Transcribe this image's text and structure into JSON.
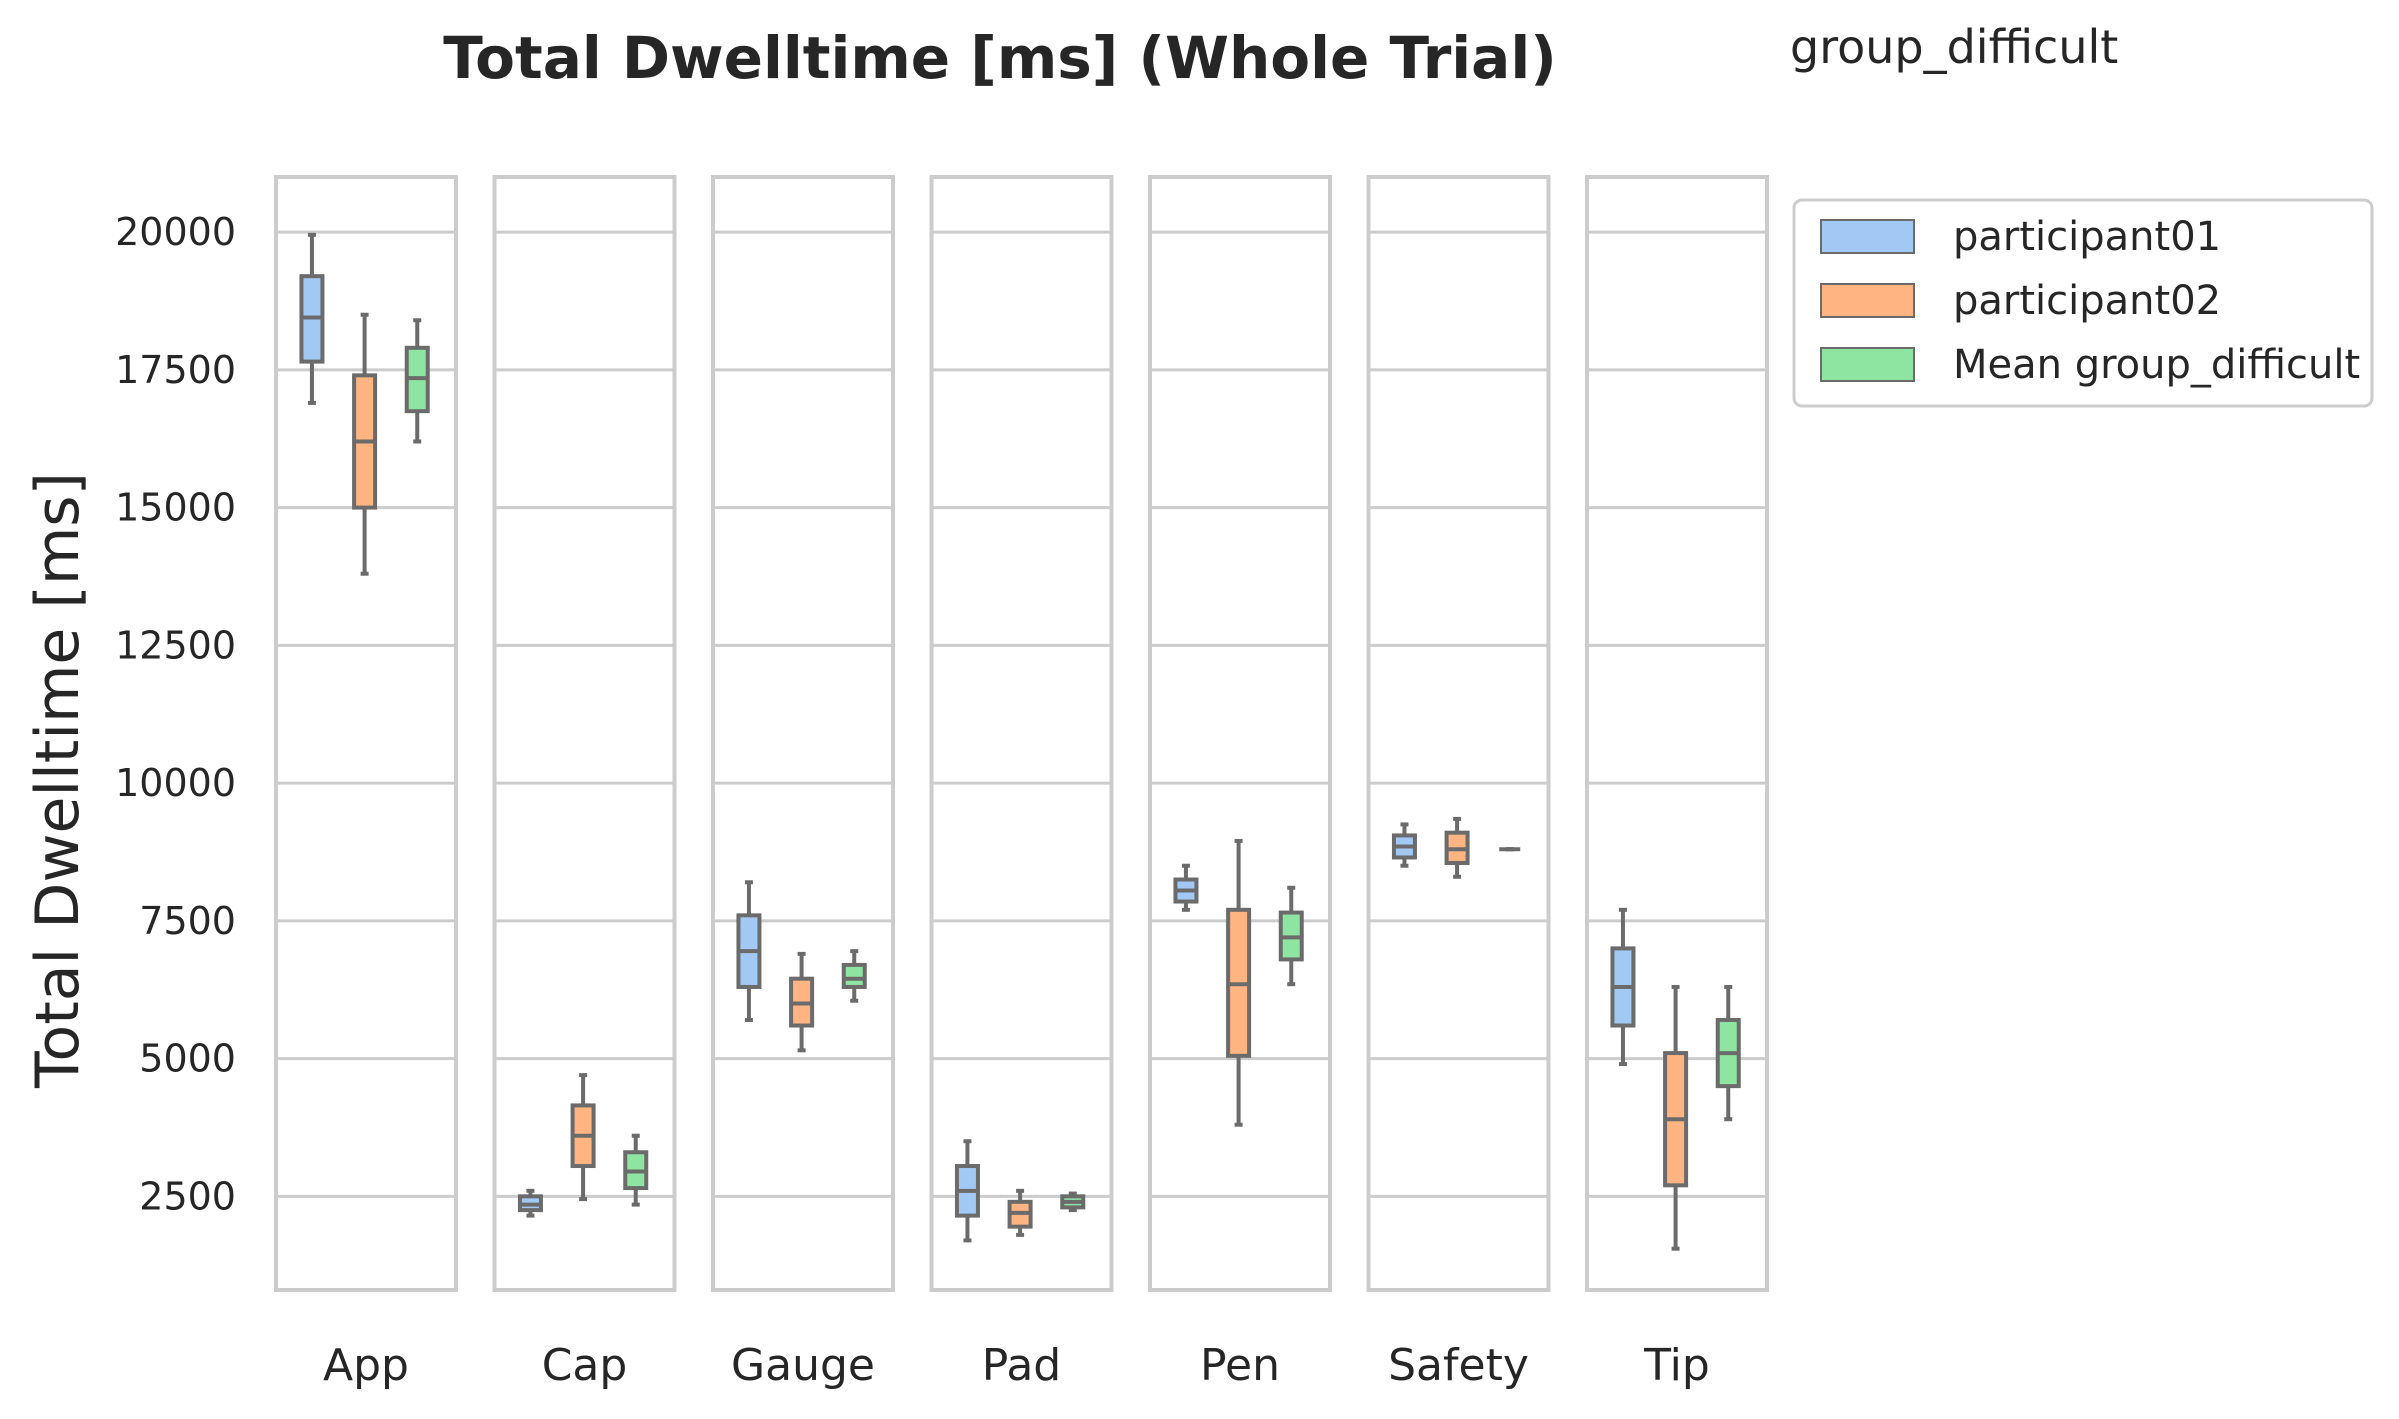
{
  "chart_data": {
    "type": "box",
    "title": "Total Dwelltime [ms] (Whole Trial)",
    "subtitle": "group_difficult",
    "ylabel": "Total Dwelltime [ms]",
    "ylim": [
      800,
      21000
    ],
    "yticks": [
      2500,
      5000,
      7500,
      10000,
      12500,
      15000,
      17500,
      20000
    ],
    "grid": true,
    "legend_position": "outside-top-right",
    "categories": [
      "App",
      "Cap",
      "Gauge",
      "Pad",
      "Pen",
      "Safety",
      "Tip"
    ],
    "series": [
      {
        "name": "participant01",
        "color": "#a1c9f4",
        "boxes": [
          {
            "min": 16900,
            "q1": 17650,
            "median": 18450,
            "q3": 19200,
            "max": 19950
          },
          {
            "min": 2150,
            "q1": 2250,
            "median": 2350,
            "q3": 2500,
            "max": 2600
          },
          {
            "min": 5700,
            "q1": 6300,
            "median": 6950,
            "q3": 7600,
            "max": 8200
          },
          {
            "min": 1700,
            "q1": 2150,
            "median": 2600,
            "q3": 3050,
            "max": 3500
          },
          {
            "min": 7700,
            "q1": 7850,
            "median": 8050,
            "q3": 8250,
            "max": 8500
          },
          {
            "min": 8500,
            "q1": 8650,
            "median": 8850,
            "q3": 9050,
            "max": 9250
          },
          {
            "min": 4900,
            "q1": 5600,
            "median": 6300,
            "q3": 7000,
            "max": 7700
          }
        ]
      },
      {
        "name": "participant02",
        "color": "#ffb482",
        "boxes": [
          {
            "min": 13800,
            "q1": 15000,
            "median": 16200,
            "q3": 17400,
            "max": 18500
          },
          {
            "min": 2450,
            "q1": 3050,
            "median": 3600,
            "q3": 4150,
            "max": 4700
          },
          {
            "min": 5150,
            "q1": 5600,
            "median": 6000,
            "q3": 6450,
            "max": 6900
          },
          {
            "min": 1800,
            "q1": 1950,
            "median": 2200,
            "q3": 2400,
            "max": 2600
          },
          {
            "min": 3800,
            "q1": 5050,
            "median": 6350,
            "q3": 7700,
            "max": 8950
          },
          {
            "min": 8300,
            "q1": 8550,
            "median": 8800,
            "q3": 9100,
            "max": 9350
          },
          {
            "min": 1550,
            "q1": 2700,
            "median": 3900,
            "q3": 5100,
            "max": 6300
          }
        ]
      },
      {
        "name": "Mean group_difficult",
        "color": "#8de5a1",
        "boxes": [
          {
            "min": 16200,
            "q1": 16750,
            "median": 17350,
            "q3": 17900,
            "max": 18400
          },
          {
            "min": 2350,
            "q1": 2650,
            "median": 2950,
            "q3": 3300,
            "max": 3600
          },
          {
            "min": 6050,
            "q1": 6300,
            "median": 6450,
            "q3": 6700,
            "max": 6950
          },
          {
            "min": 2250,
            "q1": 2300,
            "median": 2400,
            "q3": 2500,
            "max": 2550
          },
          {
            "min": 6350,
            "q1": 6800,
            "median": 7200,
            "q3": 7650,
            "max": 8100
          },
          {
            "min": 8800,
            "q1": 8800,
            "median": 8800,
            "q3": 8800,
            "max": 8800
          },
          {
            "min": 3900,
            "q1": 4500,
            "median": 5100,
            "q3": 5700,
            "max": 6300
          }
        ]
      }
    ]
  }
}
